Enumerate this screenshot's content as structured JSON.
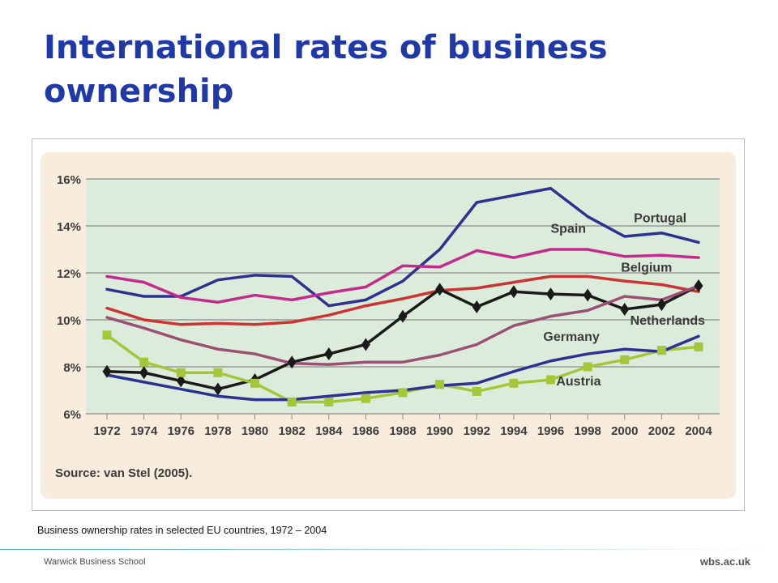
{
  "slide": {
    "title": "International rates of business ownership",
    "caption": "Business ownership rates in selected EU countries, 1972 – 2004",
    "footer_left": "Warwick Business School",
    "footer_right": "wbs.ac.uk",
    "title_color": "#1f3aa8"
  },
  "chart_data": {
    "type": "line",
    "title": "",
    "xlabel": "",
    "ylabel": "",
    "source": "Source: van Stel (2005).",
    "x": [
      1972,
      1974,
      1976,
      1978,
      1980,
      1982,
      1984,
      1986,
      1988,
      1990,
      1992,
      1994,
      1996,
      1998,
      2000,
      2002,
      2004
    ],
    "x_tick_labels": [
      "1972",
      "1974",
      "1976",
      "1978",
      "1980",
      "1982",
      "1984",
      "1986",
      "1988",
      "1990",
      "1992",
      "1994",
      "1996",
      "1998",
      "2000",
      "2002",
      "2004"
    ],
    "y_ticks": [
      6,
      8,
      10,
      12,
      14,
      16
    ],
    "y_tick_labels": [
      "6%",
      "8%",
      "10%",
      "12%",
      "14%",
      "16%"
    ],
    "ylim": [
      6,
      16
    ],
    "grid": "horizontal",
    "legend": "direct labels",
    "plot_background": "#dcecdb",
    "panel_background": "#f8ecdc",
    "series": [
      {
        "name": "Portugal",
        "color": "#2e3192",
        "marker": "none",
        "values": [
          11.3,
          11.0,
          11.0,
          11.7,
          11.9,
          11.85,
          10.6,
          10.85,
          11.65,
          13.0,
          15.0,
          15.3,
          15.6,
          14.4,
          13.55,
          13.7,
          13.3
        ]
      },
      {
        "name": "Spain",
        "color": "#c42a8c",
        "marker": "none",
        "values": [
          11.85,
          11.6,
          10.95,
          10.75,
          11.05,
          10.85,
          11.15,
          11.4,
          12.3,
          12.25,
          12.95,
          12.65,
          13.0,
          13.0,
          12.7,
          12.75,
          12.65
        ]
      },
      {
        "name": "Belgium",
        "color": "#cc3333",
        "marker": "none",
        "values": [
          10.5,
          10.0,
          9.8,
          9.85,
          9.8,
          9.9,
          10.2,
          10.6,
          10.9,
          11.25,
          11.35,
          11.6,
          11.85,
          11.85,
          11.65,
          11.5,
          11.2
        ]
      },
      {
        "name": "Netherlands",
        "color": "#1a1a1a",
        "marker": "diamond",
        "values": [
          7.8,
          7.75,
          7.4,
          7.05,
          7.45,
          8.2,
          8.55,
          8.95,
          10.15,
          11.3,
          10.55,
          11.2,
          11.1,
          11.05,
          10.45,
          10.65,
          11.45
        ]
      },
      {
        "name": "Germany",
        "color": "#9c4f75",
        "marker": "none",
        "values": [
          10.1,
          9.65,
          9.15,
          8.75,
          8.55,
          8.15,
          8.1,
          8.2,
          8.2,
          8.5,
          8.95,
          9.75,
          10.15,
          10.4,
          11.0,
          10.85,
          11.45
        ]
      },
      {
        "name": "Austria",
        "color": "#a4c639",
        "marker": "square",
        "values": [
          9.35,
          8.2,
          7.75,
          7.75,
          7.3,
          6.5,
          6.5,
          6.65,
          6.9,
          7.25,
          6.95,
          7.3,
          7.45,
          8.0,
          8.3,
          8.7,
          8.85
        ]
      },
      {
        "name": "",
        "color": "#2e3192",
        "marker": "none",
        "values": [
          7.65,
          7.35,
          7.05,
          6.75,
          6.6,
          6.6,
          6.75,
          6.9,
          7.0,
          7.2,
          7.3,
          7.8,
          8.25,
          8.55,
          8.75,
          8.65,
          9.3
        ]
      }
    ],
    "annotations": [
      {
        "text": "Portugal",
        "x": 2000.5,
        "y": 14.15
      },
      {
        "text": "Spain",
        "x": 1996.0,
        "y": 13.7
      },
      {
        "text": "Belgium",
        "x": 1999.8,
        "y": 12.05
      },
      {
        "text": "Netherlands",
        "x": 2000.3,
        "y": 9.8
      },
      {
        "text": "Germany",
        "x": 1995.6,
        "y": 9.1
      },
      {
        "text": "Austria",
        "x": 1996.3,
        "y": 7.2
      }
    ]
  }
}
